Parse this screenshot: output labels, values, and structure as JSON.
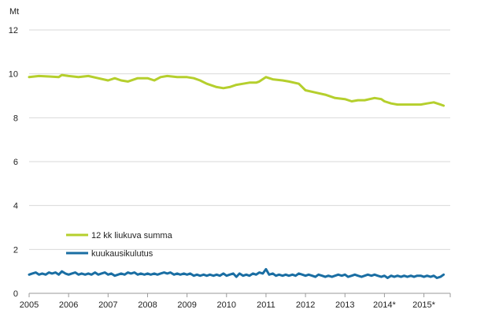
{
  "chart_data": {
    "type": "line",
    "ylabel": "Mt",
    "ylim": [
      0,
      12
    ],
    "xlim": [
      2005,
      2015.6667
    ],
    "yticks": [
      "0",
      "2",
      "4",
      "6",
      "8",
      "10",
      "12"
    ],
    "yticks_values": [
      0,
      2,
      4,
      6,
      8,
      10,
      12
    ],
    "xticks": [
      "2005",
      "2006",
      "2007",
      "2008",
      "2009",
      "2010",
      "2011",
      "2012",
      "2013",
      "2014*",
      "2015*"
    ],
    "xticks_values": [
      2005,
      2006,
      2007,
      2008,
      2009,
      2010,
      2011,
      2012,
      2013,
      2014,
      2015
    ],
    "grid": "horizontal",
    "legend_position": "lower-left",
    "series": [
      {
        "name": "12 kk liukuva summa",
        "color": "#b5cf2d",
        "values": [
          [
            2005.0,
            9.85
          ],
          [
            2005.25,
            9.9
          ],
          [
            2005.5,
            9.88
          ],
          [
            2005.75,
            9.85
          ],
          [
            2005.83,
            9.95
          ],
          [
            2006.0,
            9.9
          ],
          [
            2006.25,
            9.85
          ],
          [
            2006.5,
            9.9
          ],
          [
            2006.75,
            9.8
          ],
          [
            2007.0,
            9.7
          ],
          [
            2007.17,
            9.8
          ],
          [
            2007.33,
            9.7
          ],
          [
            2007.5,
            9.65
          ],
          [
            2007.75,
            9.8
          ],
          [
            2008.0,
            9.8
          ],
          [
            2008.17,
            9.7
          ],
          [
            2008.33,
            9.85
          ],
          [
            2008.5,
            9.9
          ],
          [
            2008.75,
            9.85
          ],
          [
            2009.0,
            9.85
          ],
          [
            2009.17,
            9.8
          ],
          [
            2009.33,
            9.7
          ],
          [
            2009.5,
            9.55
          ],
          [
            2009.75,
            9.4
          ],
          [
            2009.92,
            9.35
          ],
          [
            2010.08,
            9.4
          ],
          [
            2010.25,
            9.5
          ],
          [
            2010.42,
            9.55
          ],
          [
            2010.58,
            9.6
          ],
          [
            2010.75,
            9.6
          ],
          [
            2010.83,
            9.65
          ],
          [
            2011.0,
            9.85
          ],
          [
            2011.17,
            9.75
          ],
          [
            2011.42,
            9.7
          ],
          [
            2011.58,
            9.65
          ],
          [
            2011.83,
            9.55
          ],
          [
            2012.0,
            9.25
          ],
          [
            2012.25,
            9.15
          ],
          [
            2012.5,
            9.05
          ],
          [
            2012.75,
            8.9
          ],
          [
            2013.0,
            8.85
          ],
          [
            2013.17,
            8.75
          ],
          [
            2013.33,
            8.8
          ],
          [
            2013.5,
            8.8
          ],
          [
            2013.75,
            8.9
          ],
          [
            2013.92,
            8.85
          ],
          [
            2014.0,
            8.75
          ],
          [
            2014.17,
            8.65
          ],
          [
            2014.33,
            8.6
          ],
          [
            2014.5,
            8.6
          ],
          [
            2014.75,
            8.6
          ],
          [
            2014.92,
            8.6
          ],
          [
            2015.08,
            8.65
          ],
          [
            2015.25,
            8.7
          ],
          [
            2015.42,
            8.6
          ],
          [
            2015.5,
            8.55
          ]
        ]
      },
      {
        "name": "kuukausikulutus",
        "color": "#1a6ea3",
        "values": [
          [
            2005.0,
            0.85
          ],
          [
            2005.08,
            0.9
          ],
          [
            2005.17,
            0.95
          ],
          [
            2005.25,
            0.85
          ],
          [
            2005.33,
            0.9
          ],
          [
            2005.42,
            0.85
          ],
          [
            2005.5,
            0.95
          ],
          [
            2005.58,
            0.9
          ],
          [
            2005.67,
            0.95
          ],
          [
            2005.75,
            0.85
          ],
          [
            2005.83,
            1.0
          ],
          [
            2005.92,
            0.9
          ],
          [
            2006.0,
            0.85
          ],
          [
            2006.08,
            0.9
          ],
          [
            2006.17,
            0.95
          ],
          [
            2006.25,
            0.85
          ],
          [
            2006.33,
            0.9
          ],
          [
            2006.42,
            0.85
          ],
          [
            2006.5,
            0.9
          ],
          [
            2006.58,
            0.85
          ],
          [
            2006.67,
            0.95
          ],
          [
            2006.75,
            0.85
          ],
          [
            2006.83,
            0.9
          ],
          [
            2006.92,
            0.95
          ],
          [
            2007.0,
            0.85
          ],
          [
            2007.08,
            0.9
          ],
          [
            2007.17,
            0.8
          ],
          [
            2007.25,
            0.85
          ],
          [
            2007.33,
            0.9
          ],
          [
            2007.42,
            0.85
          ],
          [
            2007.5,
            0.95
          ],
          [
            2007.58,
            0.9
          ],
          [
            2007.67,
            0.95
          ],
          [
            2007.75,
            0.85
          ],
          [
            2007.83,
            0.9
          ],
          [
            2007.92,
            0.85
          ],
          [
            2008.0,
            0.9
          ],
          [
            2008.08,
            0.85
          ],
          [
            2008.17,
            0.9
          ],
          [
            2008.25,
            0.85
          ],
          [
            2008.33,
            0.9
          ],
          [
            2008.42,
            0.95
          ],
          [
            2008.5,
            0.9
          ],
          [
            2008.58,
            0.95
          ],
          [
            2008.67,
            0.85
          ],
          [
            2008.75,
            0.9
          ],
          [
            2008.83,
            0.85
          ],
          [
            2008.92,
            0.9
          ],
          [
            2009.0,
            0.85
          ],
          [
            2009.08,
            0.9
          ],
          [
            2009.17,
            0.8
          ],
          [
            2009.25,
            0.85
          ],
          [
            2009.33,
            0.8
          ],
          [
            2009.42,
            0.85
          ],
          [
            2009.5,
            0.8
          ],
          [
            2009.58,
            0.85
          ],
          [
            2009.67,
            0.8
          ],
          [
            2009.75,
            0.85
          ],
          [
            2009.83,
            0.8
          ],
          [
            2009.92,
            0.9
          ],
          [
            2010.0,
            0.8
          ],
          [
            2010.08,
            0.85
          ],
          [
            2010.17,
            0.9
          ],
          [
            2010.25,
            0.75
          ],
          [
            2010.33,
            0.9
          ],
          [
            2010.42,
            0.8
          ],
          [
            2010.5,
            0.85
          ],
          [
            2010.58,
            0.8
          ],
          [
            2010.67,
            0.9
          ],
          [
            2010.75,
            0.85
          ],
          [
            2010.83,
            0.95
          ],
          [
            2010.92,
            0.9
          ],
          [
            2011.0,
            1.1
          ],
          [
            2011.08,
            0.85
          ],
          [
            2011.17,
            0.9
          ],
          [
            2011.25,
            0.8
          ],
          [
            2011.33,
            0.85
          ],
          [
            2011.42,
            0.8
          ],
          [
            2011.5,
            0.85
          ],
          [
            2011.58,
            0.8
          ],
          [
            2011.67,
            0.85
          ],
          [
            2011.75,
            0.8
          ],
          [
            2011.83,
            0.9
          ],
          [
            2011.92,
            0.85
          ],
          [
            2012.0,
            0.8
          ],
          [
            2012.08,
            0.85
          ],
          [
            2012.17,
            0.8
          ],
          [
            2012.25,
            0.75
          ],
          [
            2012.33,
            0.85
          ],
          [
            2012.42,
            0.8
          ],
          [
            2012.5,
            0.75
          ],
          [
            2012.58,
            0.8
          ],
          [
            2012.67,
            0.75
          ],
          [
            2012.75,
            0.8
          ],
          [
            2012.83,
            0.85
          ],
          [
            2012.92,
            0.8
          ],
          [
            2013.0,
            0.85
          ],
          [
            2013.08,
            0.75
          ],
          [
            2013.17,
            0.8
          ],
          [
            2013.25,
            0.85
          ],
          [
            2013.33,
            0.8
          ],
          [
            2013.42,
            0.75
          ],
          [
            2013.5,
            0.8
          ],
          [
            2013.58,
            0.85
          ],
          [
            2013.67,
            0.8
          ],
          [
            2013.75,
            0.85
          ],
          [
            2013.83,
            0.8
          ],
          [
            2013.92,
            0.75
          ],
          [
            2014.0,
            0.8
          ],
          [
            2014.08,
            0.7
          ],
          [
            2014.17,
            0.8
          ],
          [
            2014.25,
            0.75
          ],
          [
            2014.33,
            0.8
          ],
          [
            2014.42,
            0.75
          ],
          [
            2014.5,
            0.8
          ],
          [
            2014.58,
            0.75
          ],
          [
            2014.67,
            0.8
          ],
          [
            2014.75,
            0.75
          ],
          [
            2014.83,
            0.8
          ],
          [
            2014.92,
            0.8
          ],
          [
            2015.0,
            0.75
          ],
          [
            2015.08,
            0.8
          ],
          [
            2015.17,
            0.75
          ],
          [
            2015.25,
            0.8
          ],
          [
            2015.33,
            0.7
          ],
          [
            2015.42,
            0.75
          ],
          [
            2015.5,
            0.85
          ]
        ]
      }
    ]
  }
}
